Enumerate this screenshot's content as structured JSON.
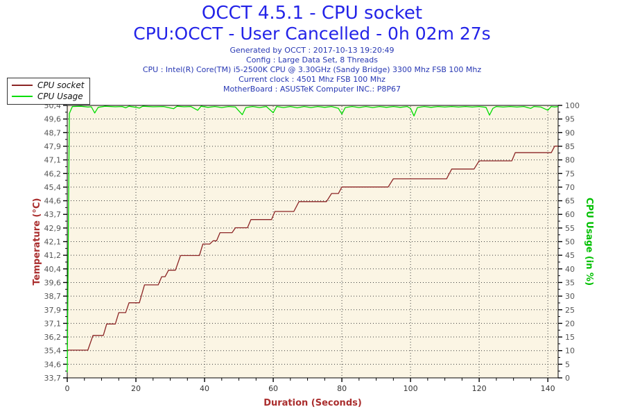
{
  "header": {
    "title": "OCCT 4.5.1 - CPU socket",
    "subtitle": "CPU:OCCT - User Cancelled - 0h 02m 27s",
    "info_lines": [
      "Generated by OCCT : 2017-10-13 19:20:49",
      "Config : Large Data Set, 8 Threads",
      "CPU : Intel(R) Core(TM) i5-2500K CPU @ 3.30GHz (Sandy Bridge) 3300 Mhz FSB 100 Mhz",
      "Current clock : 4501 Mhz FSB 100 Mhz",
      "MotherBoard : ASUSTeK Computer INC.: P8P67"
    ],
    "title_color": "#2323e8",
    "info_color": "#2737b3"
  },
  "legend": {
    "items": [
      {
        "label": "CPU socket",
        "color": "#8b2424"
      },
      {
        "label": "CPU Usage",
        "color": "#00dd00"
      }
    ]
  },
  "chart_data": {
    "type": "line",
    "title": "OCCT 4.5.1 - CPU socket",
    "subtitle": "CPU:OCCT - User Cancelled - 0h 02m 27s",
    "xlabel": "Duration (Seconds)",
    "ylabel_left": "Temperature (°C)",
    "ylabel_right": "CPU Usage (in %)",
    "xlim": [
      0,
      143
    ],
    "x_major_ticks": [
      0,
      20,
      40,
      60,
      80,
      100,
      120,
      140
    ],
    "x_major_labels": [
      "0",
      "20",
      "40",
      "60",
      "80",
      "100",
      "120",
      "140"
    ],
    "x_minor_step": 5,
    "y_left_lim": [
      33.7,
      50.4
    ],
    "y_left_labels": [
      "50,4",
      "49,6",
      "48,7",
      "47,9",
      "47,1",
      "46,2",
      "45,4",
      "44,6",
      "43,7",
      "42,9",
      "42,1",
      "41,2",
      "40,4",
      "39,6",
      "38,7",
      "37,9",
      "37,1",
      "36,2",
      "35,4",
      "34,6",
      "33,7"
    ],
    "y_right_lim": [
      0,
      100
    ],
    "y_right_labels": [
      "100",
      "95",
      "90",
      "85",
      "80",
      "75",
      "70",
      "65",
      "60",
      "55",
      "50",
      "45",
      "40",
      "35",
      "30",
      "25",
      "20",
      "15",
      "10",
      "5",
      "0"
    ],
    "grid": "dotted",
    "legend_position": "top-left",
    "plot_bg": "#fbf5e4",
    "grid_color": "#3a3a3a",
    "tick_label_color": "#555555",
    "x_label_color": "#333333",
    "left_title_color": "#aa2e2e",
    "right_title_color": "#00c000",
    "xlabel_color": "#aa2e2e",
    "series": [
      {
        "name": "CPU socket",
        "axis": "left",
        "color": "#8b2424",
        "points": [
          [
            0,
            35.4
          ],
          [
            6,
            35.4
          ],
          [
            7.5,
            36.3
          ],
          [
            10.5,
            36.3
          ],
          [
            11.5,
            37.0
          ],
          [
            14,
            37.0
          ],
          [
            15,
            37.7
          ],
          [
            17,
            37.7
          ],
          [
            18,
            38.3
          ],
          [
            21,
            38.3
          ],
          [
            22.5,
            39.4
          ],
          [
            26.5,
            39.4
          ],
          [
            27.5,
            39.9
          ],
          [
            28.5,
            39.9
          ],
          [
            29.5,
            40.3
          ],
          [
            31.5,
            40.3
          ],
          [
            33,
            41.2
          ],
          [
            38.5,
            41.2
          ],
          [
            39.5,
            41.9
          ],
          [
            41.5,
            41.9
          ],
          [
            42.5,
            42.1
          ],
          [
            43.5,
            42.1
          ],
          [
            44.5,
            42.6
          ],
          [
            48,
            42.6
          ],
          [
            49,
            42.9
          ],
          [
            52.5,
            42.9
          ],
          [
            53.5,
            43.4
          ],
          [
            59.5,
            43.4
          ],
          [
            60.5,
            43.9
          ],
          [
            66,
            43.9
          ],
          [
            67.5,
            44.5
          ],
          [
            75.5,
            44.5
          ],
          [
            77,
            45.0
          ],
          [
            79,
            45.0
          ],
          [
            80,
            45.4
          ],
          [
            93.5,
            45.4
          ],
          [
            95,
            45.9
          ],
          [
            110.5,
            45.9
          ],
          [
            112,
            46.5
          ],
          [
            118.5,
            46.5
          ],
          [
            120,
            47.0
          ],
          [
            129.5,
            47.0
          ],
          [
            130.5,
            47.5
          ],
          [
            141,
            47.5
          ],
          [
            142,
            47.9
          ],
          [
            143,
            47.9
          ]
        ]
      },
      {
        "name": "CPU Usage",
        "axis": "right",
        "color": "#00dd00",
        "points": [
          [
            0,
            2
          ],
          [
            0.6,
            97
          ],
          [
            1.5,
            99.6
          ],
          [
            4,
            99.7
          ],
          [
            6,
            99.4
          ],
          [
            7,
            99.5
          ],
          [
            8,
            97.2
          ],
          [
            9,
            99.3
          ],
          [
            11,
            99.7
          ],
          [
            14,
            99.5
          ],
          [
            16,
            99.6
          ],
          [
            17,
            99.1
          ],
          [
            18,
            99.7
          ],
          [
            20,
            99.3
          ],
          [
            21,
            99.0
          ],
          [
            22,
            99.7
          ],
          [
            25,
            99.5
          ],
          [
            28,
            99.6
          ],
          [
            31,
            98.8
          ],
          [
            32,
            99.7
          ],
          [
            34,
            99.5
          ],
          [
            36,
            99.6
          ],
          [
            38,
            98.2
          ],
          [
            39,
            99.7
          ],
          [
            41,
            99.3
          ],
          [
            43,
            99.6
          ],
          [
            45,
            99.2
          ],
          [
            47,
            99.6
          ],
          [
            49,
            99.4
          ],
          [
            51,
            96.6
          ],
          [
            52,
            99.2
          ],
          [
            54,
            99.6
          ],
          [
            56,
            99.2
          ],
          [
            58,
            99.6
          ],
          [
            60,
            97.3
          ],
          [
            61,
            99.6
          ],
          [
            63,
            99.2
          ],
          [
            65,
            99.6
          ],
          [
            67,
            99.1
          ],
          [
            69,
            99.6
          ],
          [
            71,
            99.2
          ],
          [
            73,
            99.6
          ],
          [
            75,
            99.3
          ],
          [
            77,
            99.6
          ],
          [
            79,
            98.9
          ],
          [
            80,
            96.8
          ],
          [
            81,
            99.2
          ],
          [
            83,
            99.6
          ],
          [
            85,
            99.2
          ],
          [
            87,
            99.6
          ],
          [
            89,
            99.2
          ],
          [
            91,
            99.6
          ],
          [
            93,
            99.3
          ],
          [
            95,
            99.6
          ],
          [
            97,
            99.3
          ],
          [
            99,
            99.6
          ],
          [
            100,
            98.9
          ],
          [
            101,
            96.1
          ],
          [
            102,
            99.2
          ],
          [
            104,
            99.6
          ],
          [
            106,
            99.3
          ],
          [
            108,
            99.6
          ],
          [
            110,
            99.4
          ],
          [
            112,
            99.6
          ],
          [
            114,
            99.4
          ],
          [
            116,
            99.6
          ],
          [
            118,
            99.4
          ],
          [
            120,
            99.6
          ],
          [
            122,
            99.3
          ],
          [
            123,
            96.4
          ],
          [
            124,
            98.9
          ],
          [
            125,
            99.6
          ],
          [
            127,
            99.4
          ],
          [
            129,
            99.6
          ],
          [
            131,
            99.4
          ],
          [
            133,
            99.6
          ],
          [
            135,
            98.9
          ],
          [
            136,
            99.6
          ],
          [
            138,
            99.4
          ],
          [
            140,
            98.2
          ],
          [
            141,
            99.6
          ],
          [
            142,
            99.4
          ],
          [
            143,
            99.6
          ]
        ]
      }
    ]
  }
}
